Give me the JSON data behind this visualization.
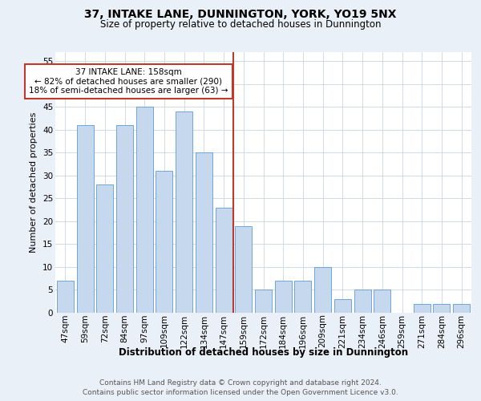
{
  "title1": "37, INTAKE LANE, DUNNINGTON, YORK, YO19 5NX",
  "title2": "Size of property relative to detached houses in Dunnington",
  "xlabel": "Distribution of detached houses by size in Dunnington",
  "ylabel": "Number of detached properties",
  "categories": [
    "47sqm",
    "59sqm",
    "72sqm",
    "84sqm",
    "97sqm",
    "109sqm",
    "122sqm",
    "134sqm",
    "147sqm",
    "159sqm",
    "172sqm",
    "184sqm",
    "196sqm",
    "209sqm",
    "221sqm",
    "234sqm",
    "246sqm",
    "259sqm",
    "271sqm",
    "284sqm",
    "296sqm"
  ],
  "values": [
    7,
    41,
    28,
    41,
    45,
    31,
    44,
    35,
    23,
    19,
    5,
    7,
    7,
    10,
    3,
    5,
    5,
    0,
    2,
    2,
    2
  ],
  "bar_color": "#c5d8ed",
  "bar_edge_color": "#5b9bd5",
  "vline_color": "#c0392b",
  "vline_pos": 8.5,
  "annotation_text": "37 INTAKE LANE: 158sqm\n← 82% of detached houses are smaller (290)\n18% of semi-detached houses are larger (63) →",
  "annotation_box_color": "#c0392b",
  "ylim": [
    0,
    57
  ],
  "yticks": [
    0,
    5,
    10,
    15,
    20,
    25,
    30,
    35,
    40,
    45,
    50,
    55
  ],
  "footer": "Contains HM Land Registry data © Crown copyright and database right 2024.\nContains public sector information licensed under the Open Government Licence v3.0.",
  "bg_color": "#eaf0f7",
  "plot_bg_color": "#ffffff",
  "grid_color": "#c8d4e0",
  "title1_fontsize": 10,
  "title2_fontsize": 8.5,
  "xlabel_fontsize": 8.5,
  "ylabel_fontsize": 8,
  "tick_fontsize": 7.5,
  "annotation_fontsize": 7.5,
  "footer_fontsize": 6.5
}
